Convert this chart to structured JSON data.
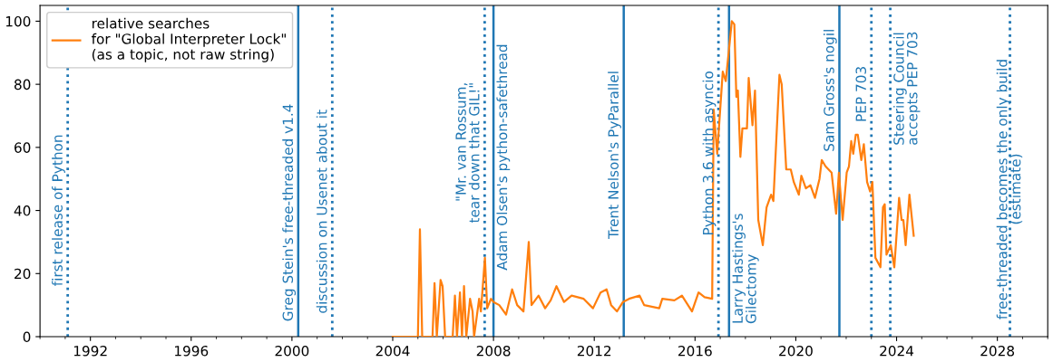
{
  "chart_data": {
    "type": "line",
    "xlim": [
      1990,
      2030
    ],
    "ylim": [
      0,
      105
    ],
    "xticks": [
      1992,
      1996,
      2000,
      2004,
      2008,
      2012,
      2016,
      2020,
      2024,
      2028
    ],
    "yticks": [
      0,
      20,
      40,
      60,
      80,
      100
    ],
    "grid": false,
    "legend": "top left",
    "marker": "none",
    "line_style": "solid",
    "series": [
      {
        "name": "relative searches\nfor \"Global Interpreter Lock\"\n(as a topic, not raw string)",
        "color": "#ff7f0e",
        "x": [
          2004.0,
          2005.0,
          2005.08,
          2005.17,
          2005.58,
          2005.66,
          2005.75,
          2005.9,
          2005.98,
          2006.08,
          2006.38,
          2006.47,
          2006.55,
          2006.67,
          2006.75,
          2006.83,
          2006.92,
          2007.07,
          2007.17,
          2007.23,
          2007.43,
          2007.5,
          2007.66,
          2007.75,
          2007.9,
          2008.0,
          2008.23,
          2008.5,
          2008.74,
          2008.94,
          2009.19,
          2009.4,
          2009.51,
          2009.79,
          2010.05,
          2010.27,
          2010.5,
          2010.8,
          2011.1,
          2011.58,
          2011.95,
          2012.25,
          2012.49,
          2012.67,
          2012.9,
          2013.14,
          2013.38,
          2013.8,
          2013.98,
          2014.58,
          2014.7,
          2015.18,
          2015.48,
          2015.88,
          2016.14,
          2016.38,
          2016.68,
          2016.74,
          2016.88,
          2017.1,
          2017.22,
          2017.46,
          2017.56,
          2017.64,
          2017.7,
          2017.8,
          2017.88,
          2018.06,
          2018.13,
          2018.28,
          2018.38,
          2018.51,
          2018.69,
          2018.84,
          2019.02,
          2019.11,
          2019.35,
          2019.44,
          2019.62,
          2019.8,
          2019.92,
          2020.12,
          2020.22,
          2020.4,
          2020.58,
          2020.76,
          2020.94,
          2021.03,
          2021.18,
          2021.42,
          2021.6,
          2021.71,
          2021.86,
          2022.02,
          2022.11,
          2022.2,
          2022.28,
          2022.38,
          2022.46,
          2022.6,
          2022.7,
          2022.83,
          2022.95,
          2023.04,
          2023.16,
          2023.36,
          2023.46,
          2023.53,
          2023.6,
          2023.77,
          2023.91,
          2024.1,
          2024.2,
          2024.27,
          2024.36,
          2024.51,
          2024.68
        ],
        "values": [
          0,
          0,
          34,
          0,
          0,
          17,
          0,
          18,
          16,
          0,
          0,
          13,
          0,
          14,
          0,
          16,
          0,
          12,
          8,
          0,
          12,
          8,
          25,
          9,
          12,
          11,
          10,
          7,
          15,
          10,
          8,
          30,
          10,
          13,
          9,
          11.5,
          16,
          11,
          13,
          12,
          9,
          14,
          15,
          10,
          8,
          11,
          12,
          13,
          10,
          9,
          12,
          11.5,
          13,
          8,
          14,
          12.5,
          12,
          72,
          58,
          84,
          81,
          100,
          99,
          76,
          78,
          57,
          66,
          66,
          82,
          67,
          78,
          37,
          29,
          41,
          45,
          43,
          83,
          80,
          53,
          53,
          49,
          45,
          51,
          47,
          48,
          44,
          50,
          56,
          54,
          52,
          39,
          52,
          37,
          52,
          54,
          62,
          58,
          64,
          64,
          56,
          61,
          49,
          46,
          49,
          25,
          22,
          41,
          42,
          26,
          29,
          22,
          44,
          37,
          37,
          29,
          45,
          32
        ]
      }
    ],
    "ref_lines": [
      {
        "axis": "x",
        "value": 1991.1,
        "label": "first release of Python",
        "line_style": "dotted",
        "color": "#1f77b4"
      },
      {
        "axis": "x",
        "value": 2000.25,
        "label": "Greg Stein's free-threaded v1.4",
        "line_style": "solid",
        "color": "#1f77b4"
      },
      {
        "axis": "x",
        "value": 2001.6,
        "label": "discussion on Usenet about it",
        "line_style": "dotted",
        "color": "#1f77b4"
      },
      {
        "axis": "x",
        "value": 2007.65,
        "label": "\"Mr. van Rossum,\ntear down that GIL!\"",
        "line_style": "dotted",
        "color": "#1f77b4"
      },
      {
        "axis": "x",
        "value": 2008.0,
        "label": "Adam Olsen's python-safethread",
        "line_style": "solid",
        "color": "#1f77b4"
      },
      {
        "axis": "x",
        "value": 2013.17,
        "label": "Trent Nelson's PyParallel",
        "line_style": "solid",
        "color": "#1f77b4"
      },
      {
        "axis": "x",
        "value": 2016.93,
        "label": "Python 3.6 with asyncio",
        "line_style": "dotted",
        "color": "#1f77b4"
      },
      {
        "axis": "x",
        "value": 2017.35,
        "label": "Larry Hastings's\nGilectomy",
        "line_style": "solid",
        "color": "#1f77b4"
      },
      {
        "axis": "x",
        "value": 2021.73,
        "label": "Sam Gross's nogil",
        "line_style": "solid",
        "color": "#1f77b4"
      },
      {
        "axis": "x",
        "value": 2023.0,
        "label": "PEP 703",
        "line_style": "dotted",
        "color": "#1f77b4"
      },
      {
        "axis": "x",
        "value": 2023.75,
        "label": "Steering Council\naccepts PEP 703",
        "line_style": "dotted",
        "color": "#1f77b4"
      },
      {
        "axis": "x",
        "value": 2028.5,
        "label": "free-threaded becomes the only build\n(estimate)",
        "line_style": "dotted",
        "color": "#1f77b4"
      }
    ]
  }
}
